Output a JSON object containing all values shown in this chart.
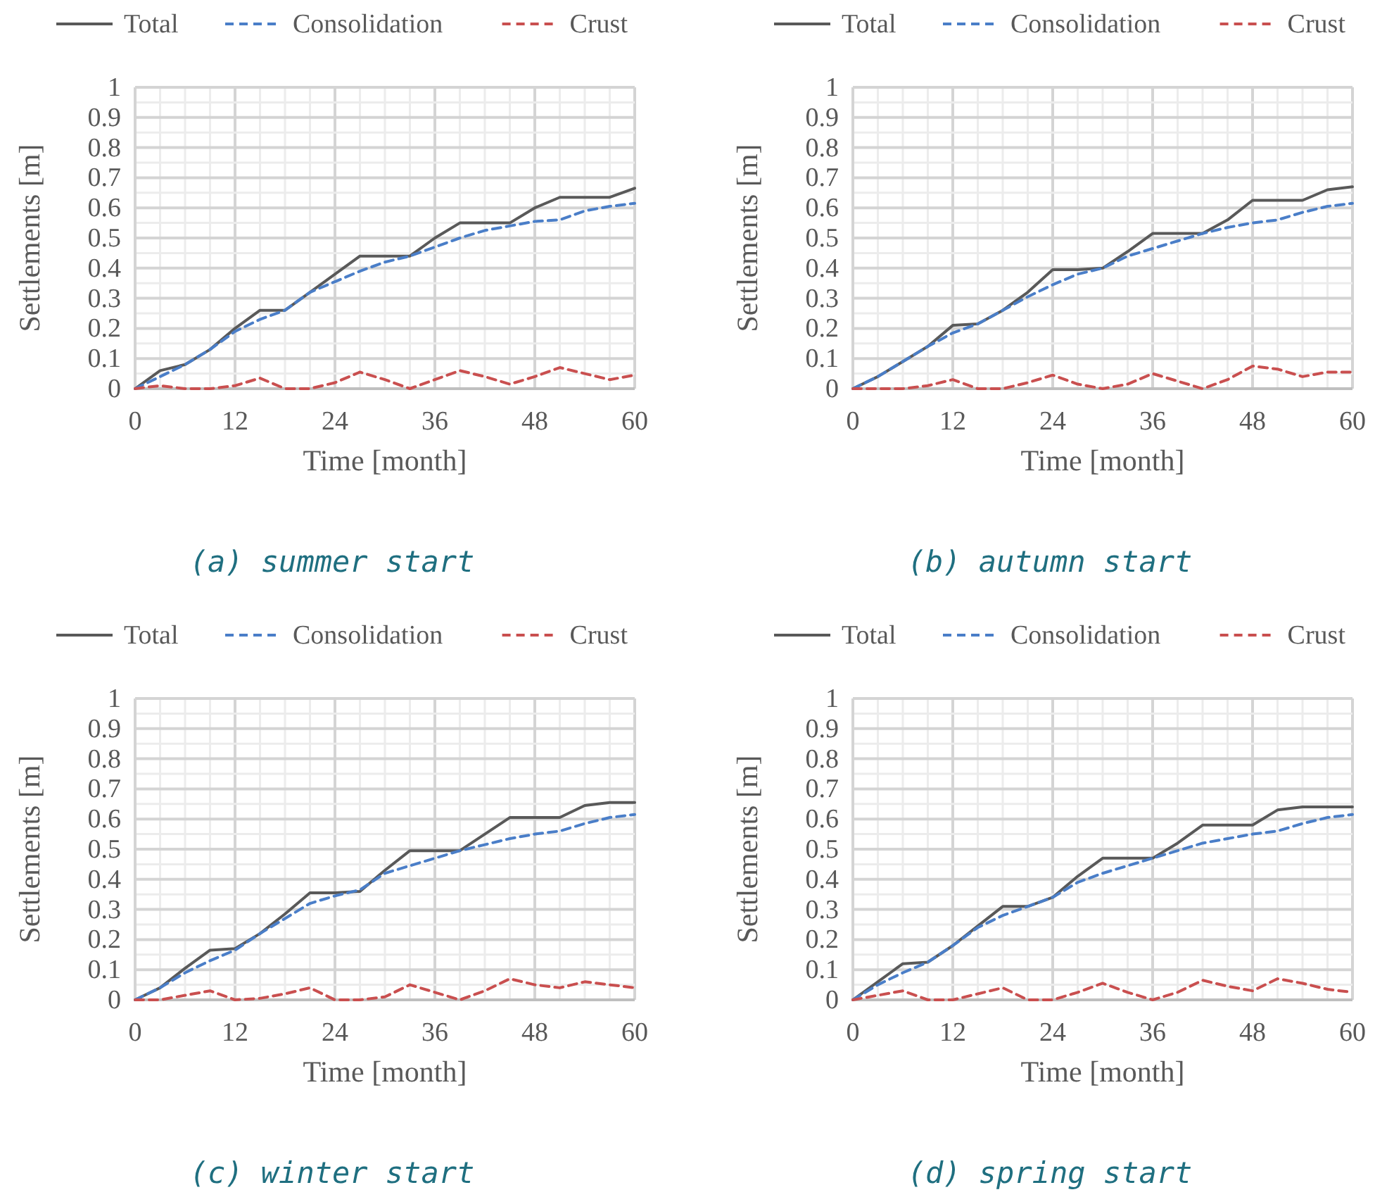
{
  "chart_data": [
    {
      "type": "line",
      "xlabel": "Time [month]",
      "ylabel": "Settlements [m]",
      "annotations": [
        "(a) summer start"
      ],
      "x": [
        0,
        3,
        6,
        9,
        12,
        15,
        18,
        21,
        24,
        27,
        30,
        33,
        36,
        39,
        42,
        45,
        48,
        51,
        54,
        57,
        60
      ],
      "xlim": [
        0,
        60
      ],
      "ylim": [
        0,
        1
      ],
      "xticks": [
        0,
        {
          "value": 3,
          "label": null
        },
        {
          "value": 6,
          "label": null
        },
        {
          "value": 9,
          "label": null
        },
        12,
        {
          "value": 15,
          "label": null
        },
        {
          "value": 18,
          "label": null
        },
        {
          "value": 21,
          "label": null
        },
        24,
        {
          "value": 27,
          "label": null
        },
        {
          "value": 30,
          "label": null
        },
        {
          "value": 33,
          "label": null
        },
        36,
        {
          "value": 39,
          "label": null
        },
        {
          "value": 42,
          "label": null
        },
        {
          "value": 45,
          "label": null
        },
        48,
        {
          "value": 51,
          "label": null
        },
        {
          "value": 54,
          "label": null
        },
        {
          "value": 57,
          "label": null
        },
        60
      ],
      "yticks": [
        0,
        {
          "value": 0.05,
          "label": null
        },
        0.1,
        {
          "value": 0.15,
          "label": null
        },
        0.2,
        {
          "value": 0.25,
          "label": null
        },
        0.3,
        {
          "value": 0.35,
          "label": null
        },
        0.4,
        {
          "value": 0.45,
          "label": null
        },
        0.5,
        {
          "value": 0.55,
          "label": null
        },
        0.6,
        {
          "value": 0.65,
          "label": null
        },
        0.7,
        {
          "value": 0.75,
          "label": null
        },
        0.8,
        {
          "value": 0.85,
          "label": null
        },
        0.9,
        {
          "value": 0.95,
          "label": null
        },
        1
      ],
      "grid": true,
      "legend": "top",
      "marker": "none",
      "series": [
        {
          "name": "Total",
          "color": "#595959",
          "line_style": "solid",
          "values": [
            0,
            0.06,
            0.08,
            0.13,
            0.2,
            0.26,
            0.26,
            0.32,
            0.38,
            0.44,
            0.44,
            0.44,
            0.5,
            0.55,
            0.55,
            0.55,
            0.6,
            0.635,
            0.635,
            0.635,
            0.665
          ]
        },
        {
          "name": "Consolidation",
          "color": "#4a7ec8",
          "line_style": "dashed",
          "values": [
            0,
            0.04,
            0.08,
            0.13,
            0.19,
            0.23,
            0.26,
            0.32,
            0.355,
            0.39,
            0.42,
            0.44,
            0.47,
            0.5,
            0.525,
            0.54,
            0.555,
            0.56,
            0.59,
            0.605,
            0.615
          ]
        },
        {
          "name": "Crust",
          "color": "#c94f4f",
          "line_style": "dashed",
          "values": [
            0,
            0.01,
            0,
            0,
            0.01,
            0.035,
            0,
            0,
            0.02,
            0.055,
            0.03,
            0,
            0.03,
            0.06,
            0.04,
            0.015,
            0.04,
            0.07,
            0.05,
            0.03,
            0.045
          ]
        }
      ]
    },
    {
      "type": "line",
      "xlabel": "Time [month]",
      "ylabel": "Settlements [m]",
      "annotations": [
        "(b) autumn start"
      ],
      "x": [
        0,
        3,
        6,
        9,
        12,
        15,
        18,
        21,
        24,
        27,
        30,
        33,
        36,
        39,
        42,
        45,
        48,
        51,
        54,
        57,
        60
      ],
      "xlim": [
        0,
        60
      ],
      "ylim": [
        0,
        1
      ],
      "xticks": [
        0,
        {
          "value": 3,
          "label": null
        },
        {
          "value": 6,
          "label": null
        },
        {
          "value": 9,
          "label": null
        },
        12,
        {
          "value": 15,
          "label": null
        },
        {
          "value": 18,
          "label": null
        },
        {
          "value": 21,
          "label": null
        },
        24,
        {
          "value": 27,
          "label": null
        },
        {
          "value": 30,
          "label": null
        },
        {
          "value": 33,
          "label": null
        },
        36,
        {
          "value": 39,
          "label": null
        },
        {
          "value": 42,
          "label": null
        },
        {
          "value": 45,
          "label": null
        },
        48,
        {
          "value": 51,
          "label": null
        },
        {
          "value": 54,
          "label": null
        },
        {
          "value": 57,
          "label": null
        },
        60
      ],
      "yticks": [
        0,
        {
          "value": 0.05,
          "label": null
        },
        0.1,
        {
          "value": 0.15,
          "label": null
        },
        0.2,
        {
          "value": 0.25,
          "label": null
        },
        0.3,
        {
          "value": 0.35,
          "label": null
        },
        0.4,
        {
          "value": 0.45,
          "label": null
        },
        0.5,
        {
          "value": 0.55,
          "label": null
        },
        0.6,
        {
          "value": 0.65,
          "label": null
        },
        0.7,
        {
          "value": 0.75,
          "label": null
        },
        0.8,
        {
          "value": 0.85,
          "label": null
        },
        0.9,
        {
          "value": 0.95,
          "label": null
        },
        1
      ],
      "grid": true,
      "legend": "top",
      "marker": "none",
      "series": [
        {
          "name": "Total",
          "color": "#595959",
          "line_style": "solid",
          "values": [
            0,
            0.04,
            0.09,
            0.14,
            0.21,
            0.215,
            0.26,
            0.32,
            0.395,
            0.395,
            0.4,
            0.455,
            0.515,
            0.515,
            0.515,
            0.56,
            0.625,
            0.625,
            0.625,
            0.66,
            0.67
          ]
        },
        {
          "name": "Consolidation",
          "color": "#4a7ec8",
          "line_style": "dashed",
          "values": [
            0,
            0.04,
            0.09,
            0.14,
            0.185,
            0.215,
            0.26,
            0.305,
            0.345,
            0.38,
            0.4,
            0.44,
            0.465,
            0.49,
            0.515,
            0.535,
            0.55,
            0.56,
            0.585,
            0.605,
            0.615
          ]
        },
        {
          "name": "Crust",
          "color": "#c94f4f",
          "line_style": "dashed",
          "values": [
            0,
            0,
            0,
            0.01,
            0.03,
            0,
            0,
            0.02,
            0.045,
            0.015,
            0,
            0.015,
            0.05,
            0.025,
            0,
            0.03,
            0.075,
            0.065,
            0.04,
            0.055,
            0.055
          ]
        }
      ]
    },
    {
      "type": "line",
      "xlabel": "Time [month]",
      "ylabel": "Settlements [m]",
      "annotations": [
        "(c) winter start"
      ],
      "x": [
        0,
        3,
        6,
        9,
        12,
        15,
        18,
        21,
        24,
        27,
        30,
        33,
        36,
        39,
        42,
        45,
        48,
        51,
        54,
        57,
        60
      ],
      "xlim": [
        0,
        60
      ],
      "ylim": [
        0,
        1
      ],
      "xticks": [
        0,
        {
          "value": 3,
          "label": null
        },
        {
          "value": 6,
          "label": null
        },
        {
          "value": 9,
          "label": null
        },
        12,
        {
          "value": 15,
          "label": null
        },
        {
          "value": 18,
          "label": null
        },
        {
          "value": 21,
          "label": null
        },
        24,
        {
          "value": 27,
          "label": null
        },
        {
          "value": 30,
          "label": null
        },
        {
          "value": 33,
          "label": null
        },
        36,
        {
          "value": 39,
          "label": null
        },
        {
          "value": 42,
          "label": null
        },
        {
          "value": 45,
          "label": null
        },
        48,
        {
          "value": 51,
          "label": null
        },
        {
          "value": 54,
          "label": null
        },
        {
          "value": 57,
          "label": null
        },
        60
      ],
      "yticks": [
        0,
        {
          "value": 0.05,
          "label": null
        },
        0.1,
        {
          "value": 0.15,
          "label": null
        },
        0.2,
        {
          "value": 0.25,
          "label": null
        },
        0.3,
        {
          "value": 0.35,
          "label": null
        },
        0.4,
        {
          "value": 0.45,
          "label": null
        },
        0.5,
        {
          "value": 0.55,
          "label": null
        },
        0.6,
        {
          "value": 0.65,
          "label": null
        },
        0.7,
        {
          "value": 0.75,
          "label": null
        },
        0.8,
        {
          "value": 0.85,
          "label": null
        },
        0.9,
        {
          "value": 0.95,
          "label": null
        },
        1
      ],
      "grid": true,
      "legend": "top",
      "marker": "none",
      "series": [
        {
          "name": "Total",
          "color": "#595959",
          "line_style": "solid",
          "values": [
            0,
            0.04,
            0.105,
            0.165,
            0.17,
            0.22,
            0.285,
            0.355,
            0.355,
            0.36,
            0.43,
            0.495,
            0.495,
            0.495,
            0.55,
            0.605,
            0.605,
            0.605,
            0.645,
            0.655,
            0.655
          ]
        },
        {
          "name": "Consolidation",
          "color": "#4a7ec8",
          "line_style": "dashed",
          "values": [
            0,
            0.04,
            0.09,
            0.13,
            0.165,
            0.22,
            0.27,
            0.32,
            0.345,
            0.365,
            0.42,
            0.445,
            0.47,
            0.495,
            0.515,
            0.535,
            0.55,
            0.56,
            0.585,
            0.605,
            0.615
          ]
        },
        {
          "name": "Crust",
          "color": "#c94f4f",
          "line_style": "dashed",
          "values": [
            0,
            0,
            0.015,
            0.03,
            0,
            0.005,
            0.02,
            0.04,
            0,
            0,
            0.01,
            0.05,
            0.025,
            0,
            0.03,
            0.07,
            0.05,
            0.04,
            0.06,
            0.05,
            0.04
          ]
        }
      ]
    },
    {
      "type": "line",
      "xlabel": "Time [month]",
      "ylabel": "Settlements [m]",
      "annotations": [
        "(d) spring start"
      ],
      "x": [
        0,
        3,
        6,
        9,
        12,
        15,
        18,
        21,
        24,
        27,
        30,
        33,
        36,
        39,
        42,
        45,
        48,
        51,
        54,
        57,
        60
      ],
      "xlim": [
        0,
        60
      ],
      "ylim": [
        0,
        1
      ],
      "xticks": [
        0,
        {
          "value": 3,
          "label": null
        },
        {
          "value": 6,
          "label": null
        },
        {
          "value": 9,
          "label": null
        },
        12,
        {
          "value": 15,
          "label": null
        },
        {
          "value": 18,
          "label": null
        },
        {
          "value": 21,
          "label": null
        },
        24,
        {
          "value": 27,
          "label": null
        },
        {
          "value": 30,
          "label": null
        },
        {
          "value": 33,
          "label": null
        },
        36,
        {
          "value": 39,
          "label": null
        },
        {
          "value": 42,
          "label": null
        },
        {
          "value": 45,
          "label": null
        },
        48,
        {
          "value": 51,
          "label": null
        },
        {
          "value": 54,
          "label": null
        },
        {
          "value": 57,
          "label": null
        },
        60
      ],
      "yticks": [
        0,
        {
          "value": 0.05,
          "label": null
        },
        0.1,
        {
          "value": 0.15,
          "label": null
        },
        0.2,
        {
          "value": 0.25,
          "label": null
        },
        0.3,
        {
          "value": 0.35,
          "label": null
        },
        0.4,
        {
          "value": 0.45,
          "label": null
        },
        0.5,
        {
          "value": 0.55,
          "label": null
        },
        0.6,
        {
          "value": 0.65,
          "label": null
        },
        0.7,
        {
          "value": 0.75,
          "label": null
        },
        0.8,
        {
          "value": 0.85,
          "label": null
        },
        0.9,
        {
          "value": 0.95,
          "label": null
        },
        1
      ],
      "grid": true,
      "legend": "top",
      "marker": "none",
      "series": [
        {
          "name": "Total",
          "color": "#595959",
          "line_style": "solid",
          "values": [
            0,
            0.06,
            0.12,
            0.125,
            0.18,
            0.245,
            0.31,
            0.31,
            0.34,
            0.41,
            0.47,
            0.47,
            0.47,
            0.52,
            0.58,
            0.58,
            0.58,
            0.63,
            0.64,
            0.64,
            0.64
          ]
        },
        {
          "name": "Consolidation",
          "color": "#4a7ec8",
          "line_style": "dashed",
          "values": [
            0,
            0.05,
            0.09,
            0.125,
            0.18,
            0.24,
            0.28,
            0.31,
            0.34,
            0.39,
            0.42,
            0.445,
            0.47,
            0.495,
            0.52,
            0.535,
            0.55,
            0.56,
            0.585,
            0.605,
            0.615
          ]
        },
        {
          "name": "Crust",
          "color": "#c94f4f",
          "line_style": "dashed",
          "values": [
            0,
            0.015,
            0.03,
            0,
            0,
            0.02,
            0.04,
            0,
            0,
            0.025,
            0.055,
            0.025,
            0,
            0.025,
            0.065,
            0.045,
            0.03,
            0.07,
            0.055,
            0.035,
            0.025
          ]
        }
      ]
    }
  ]
}
